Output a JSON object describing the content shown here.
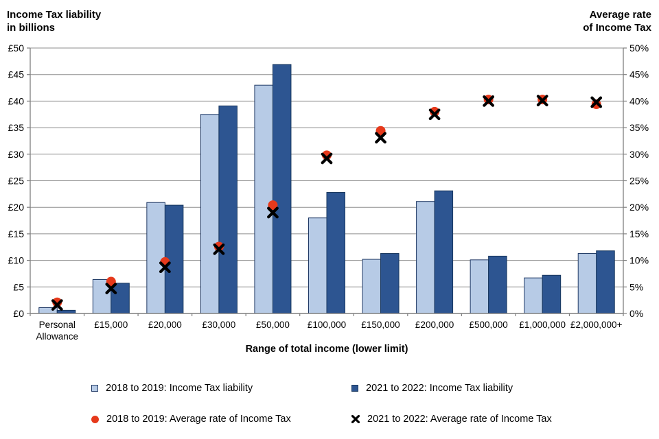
{
  "titles": {
    "left_line1": "Income Tax liability",
    "left_line2": "in billions",
    "right_line1": "Average rate",
    "right_line2": "of Income Tax"
  },
  "chart_data": {
    "type": "bar",
    "subtype": "grouped bars with scatter overlay, dual y-axes",
    "title": "",
    "xlabel": "Range of total income (lower limit)",
    "categories": [
      "Personal Allowance",
      "£15,000",
      "£20,000",
      "£30,000",
      "£50,000",
      "£100,000",
      "£150,000",
      "£200,000",
      "£500,000",
      "£1,000,000",
      "£2,000,000+"
    ],
    "bar_series": [
      {
        "name": "2018 to 2019: Income Tax liability",
        "axis": "left",
        "fill": "#B7CBE6",
        "border": "#1F3864",
        "values": [
          1.1,
          6.4,
          20.9,
          37.5,
          43.0,
          18.0,
          10.2,
          21.1,
          10.1,
          6.7,
          11.3
        ]
      },
      {
        "name": "2021 to 2022: Income Tax liability",
        "axis": "left",
        "fill": "#2D5591",
        "border": "#17365D",
        "values": [
          0.6,
          5.7,
          20.4,
          39.1,
          46.9,
          22.8,
          11.3,
          23.1,
          10.8,
          7.2,
          11.8
        ]
      }
    ],
    "scatter_series": [
      {
        "name": "2018 to 2019: Average rate of Income Tax",
        "axis": "right",
        "marker": "circle",
        "color": "#E6391B",
        "values": [
          2.1,
          6.0,
          9.7,
          12.6,
          20.4,
          29.8,
          34.4,
          38.0,
          40.3,
          40.3,
          39.4
        ]
      },
      {
        "name": "2021 to 2022: Average rate of Income Tax",
        "axis": "right",
        "marker": "x",
        "color": "#000000",
        "values": [
          1.6,
          4.7,
          8.7,
          12.1,
          19.0,
          29.2,
          33.1,
          37.5,
          40.0,
          40.1,
          39.8
        ]
      }
    ],
    "left_axis": {
      "min": 0,
      "max": 50,
      "step": 5,
      "tick_labels": [
        "£0",
        "£5",
        "£10",
        "£15",
        "£20",
        "£25",
        "£30",
        "£35",
        "£40",
        "£45",
        "£50"
      ]
    },
    "right_axis": {
      "min": 0,
      "max": 50,
      "step": 5,
      "tick_labels": [
        "0%",
        "5%",
        "10%",
        "15%",
        "20%",
        "25%",
        "30%",
        "35%",
        "40%",
        "45%",
        "50%"
      ]
    },
    "grid": true,
    "legend_position": "bottom, 2 columns x 2 rows",
    "colors": {
      "gridline": "#8E8E8E",
      "axis_line": "#7F7F7F"
    }
  },
  "legend": {
    "items": [
      {
        "label": "2018 to 2019: Income Tax liability"
      },
      {
        "label": "2021 to 2022: Income Tax liability"
      },
      {
        "label": "2018 to 2019: Average rate of Income Tax"
      },
      {
        "label": "2021 to 2022: Average rate of Income Tax"
      }
    ]
  }
}
